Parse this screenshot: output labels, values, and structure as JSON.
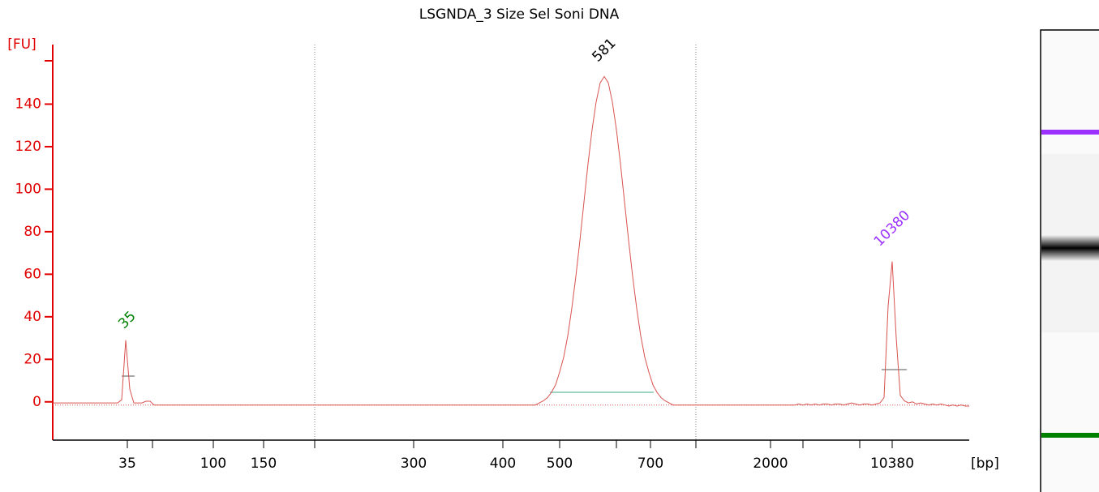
{
  "chart_data": {
    "type": "line",
    "title": "LSGNDA_3 Size Sel Soni DNA",
    "y_label": "[FU]",
    "x_label": "[bp]",
    "ylim": [
      -18,
      168
    ],
    "yticks": [
      0,
      20,
      40,
      60,
      80,
      100,
      120,
      140
    ],
    "xticks": [
      "35",
      null,
      "100",
      "150",
      null,
      "300",
      "400",
      "500",
      null,
      "700",
      null,
      "2000",
      null,
      null,
      "10380"
    ],
    "series": [
      {
        "color": "#d9534f",
        "values": [
          -0.5,
          -0.5,
          -0.5,
          -0.5,
          -0.5,
          -0.5,
          -0.5,
          -0.5,
          -0.5,
          -0.5,
          -0.5,
          -0.5,
          -0.5,
          -0.5,
          -0.5,
          -0.5,
          -0.5,
          1,
          29,
          6,
          -0.5,
          -0.5,
          -0.5,
          0.3,
          0.3,
          -1.5,
          -1.5,
          -1.5,
          -1.5,
          -1.5,
          -1.5,
          -1.5,
          -1.5,
          -1.5,
          -1.5,
          -1.5,
          -1.5,
          -1.5,
          -1.5,
          -1.5,
          -1.5,
          -1.5,
          -1.5,
          -1.5,
          -1.5,
          -1.5,
          -1.5,
          -1.5,
          -1.5,
          -1.5,
          -1.5,
          -1.5,
          -1.5,
          -1.5,
          -1.5,
          -1.5,
          -1.5,
          -1.5,
          -1.5,
          -1.5,
          -1.5,
          -1.5,
          -1.5,
          -1.5,
          -1.5,
          -1.5,
          -1.5,
          -1.5,
          -1.5,
          -1.5,
          -1.5,
          -1.5,
          -1.5,
          -1.5,
          -1.5,
          -1.5,
          -1.5,
          -1.5,
          -1.5,
          -1.5,
          -1.5,
          -1.5,
          -1.5,
          -1.5,
          -1.5,
          -1.5,
          -1.5,
          -1.5,
          -1.5,
          -1.5,
          -1.5,
          -1.5,
          -1.5,
          -1.5,
          -1.5,
          -1.5,
          -1.5,
          -1.5,
          -1.5,
          -1.5,
          -1.5,
          -1.5,
          -1.5,
          -1.5,
          -1.5,
          -1.5,
          -1.5,
          -1.5,
          -1.5,
          -1.5,
          -1.5,
          -1.5,
          -1.5,
          -1.5,
          -1.5,
          -1.5,
          -1.5,
          -1.5,
          -1.5,
          -1.5,
          -0.5,
          0.5,
          2,
          4.5,
          8,
          14,
          21,
          31,
          44,
          59,
          76,
          94,
          112,
          128,
          141,
          150,
          153,
          150,
          141,
          128,
          112,
          94,
          76,
          59,
          44,
          31,
          21,
          14,
          8,
          4.5,
          2,
          0.5,
          -0.5,
          -1.5,
          -1.5,
          -1.5,
          -1.5,
          -1.5,
          -1.5,
          -1.5,
          -1.5,
          -1.5,
          -1.5,
          -1.5,
          -1.5,
          -1.5,
          -1.5,
          -1.5,
          -1.5,
          -1.5,
          -1.5,
          -1.5,
          -1.5,
          -1.5,
          -1.5,
          -1.5,
          -1.5,
          -1.5,
          -1.5,
          -1.5,
          -1.5,
          -1.5,
          -1.5,
          -1.5,
          -1,
          -1.5,
          -1,
          -1.5,
          -1,
          -1.5,
          -1,
          -1,
          -1.5,
          -1,
          -1,
          -1.5,
          -1,
          -0.5,
          -1,
          -1.5,
          -1,
          -1,
          -1.5,
          -1,
          -0.5,
          2,
          45,
          66,
          30,
          3,
          0.5,
          -0.5,
          0,
          -1,
          -0.5,
          -1,
          -1.5,
          -1,
          -1.5,
          -1,
          -1.5,
          -2,
          -1.5,
          -2,
          -1.5,
          -2,
          -2
        ]
      }
    ],
    "peaks": [
      {
        "label": "35",
        "color": "#008000"
      },
      {
        "label": "581",
        "color": "#000000"
      },
      {
        "label": "10380",
        "color": "#9b30ff"
      }
    ]
  }
}
